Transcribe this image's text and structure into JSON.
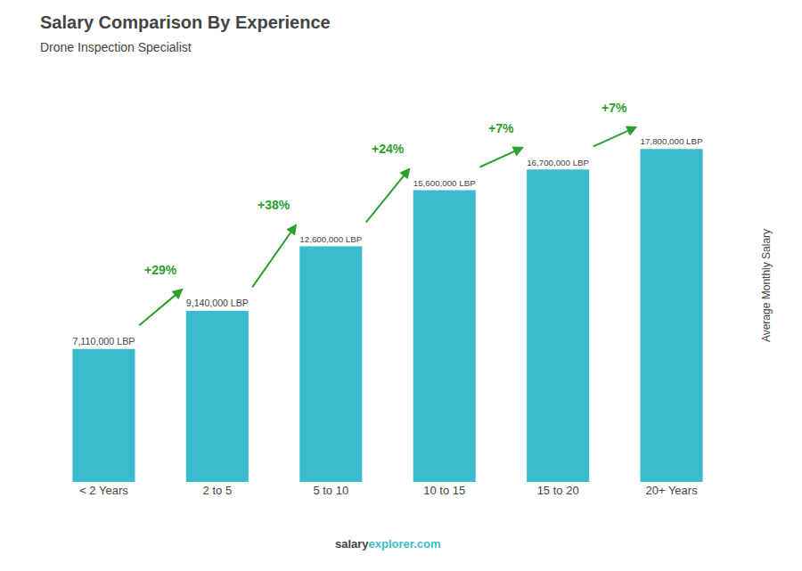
{
  "chart_data": {
    "type": "bar",
    "title": "Salary Comparison By Experience",
    "subtitle": "Drone Inspection Specialist",
    "categories": [
      "< 2 Years",
      "2 to 5",
      "5 to 10",
      "10 to 15",
      "15 to 20",
      "20+ Years"
    ],
    "values": [
      7110000,
      9140000,
      12600000,
      15600000,
      16700000,
      17800000
    ],
    "value_labels": [
      "7,110,000 LBP",
      "9,140,000 LBP",
      "12,600,000 LBP",
      "15,600,000 LBP",
      "16,700,000 LBP",
      "17,800,000 LBP"
    ],
    "data_labels": true,
    "annotations": [
      "+29%",
      "+38%",
      "+24%",
      "+7%",
      "+7%"
    ],
    "ylabel": "Average Monthly Salary",
    "footer": [
      "salary",
      "explorer.com"
    ],
    "color": "#3BBCCE",
    "ylim": [
      0,
      21000000
    ],
    "yticks": [],
    "tick_labels": "x",
    "grid": false
  }
}
